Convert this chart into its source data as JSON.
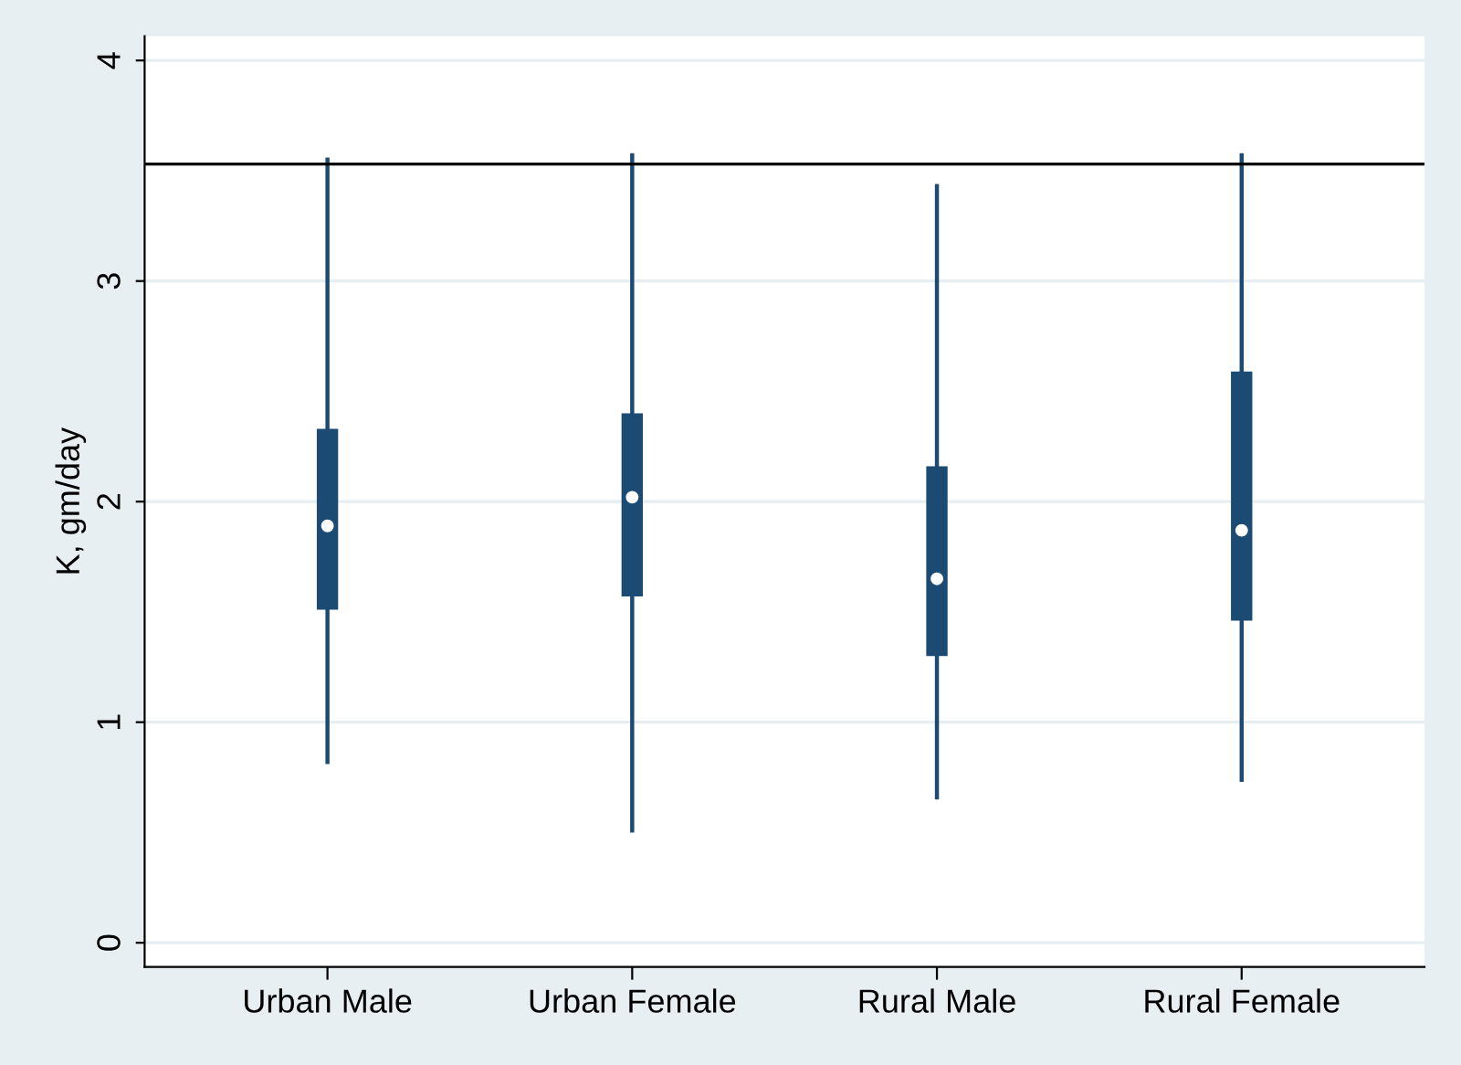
{
  "chart_data": {
    "type": "box",
    "ylabel": "K, gm/day",
    "categories": [
      "Urban Male",
      "Urban Female",
      "Rural Male",
      "Rural Female"
    ],
    "boxes": [
      {
        "low": 0.81,
        "q1": 1.51,
        "median": 1.89,
        "q3": 2.33,
        "high": 3.56
      },
      {
        "low": 0.5,
        "q1": 1.57,
        "median": 2.02,
        "q3": 2.4,
        "high": 3.58
      },
      {
        "low": 0.65,
        "q1": 1.3,
        "median": 1.65,
        "q3": 2.16,
        "high": 3.44
      },
      {
        "low": 0.73,
        "q1": 1.46,
        "median": 1.87,
        "q3": 2.59,
        "high": 3.58
      }
    ],
    "color": "#1b4a72",
    "ylim": [
      -0.11,
      4.11
    ],
    "yticks": [
      0,
      1,
      2,
      3,
      4
    ],
    "grid": "y",
    "ref_lines": [
      {
        "axis": "y",
        "value": 3.53,
        "color": "#000000"
      }
    ]
  }
}
